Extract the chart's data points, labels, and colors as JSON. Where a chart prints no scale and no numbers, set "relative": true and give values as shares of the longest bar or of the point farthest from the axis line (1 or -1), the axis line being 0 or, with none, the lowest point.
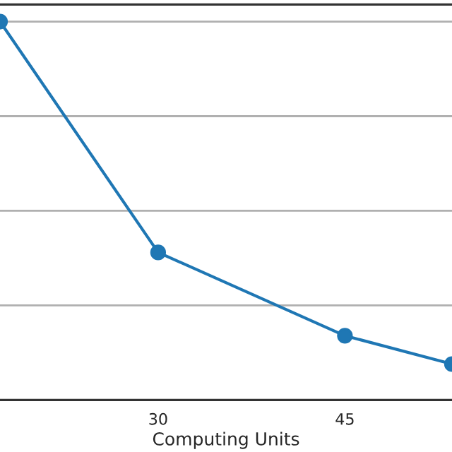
{
  "chart_data": {
    "type": "line",
    "xlabel": "Computing Units",
    "relative": true,
    "x": [
      17.3,
      30,
      45,
      53.6
    ],
    "series": [
      {
        "color": "#1f77b4",
        "values": [
          1,
          0.39,
          0.17,
          0.095
        ]
      }
    ],
    "xlim": [
      17.3,
      53.6
    ],
    "xticks": [
      30,
      45
    ],
    "grid": "y",
    "marker": "circle",
    "line_style": "solid",
    "tick_labels": "x"
  }
}
